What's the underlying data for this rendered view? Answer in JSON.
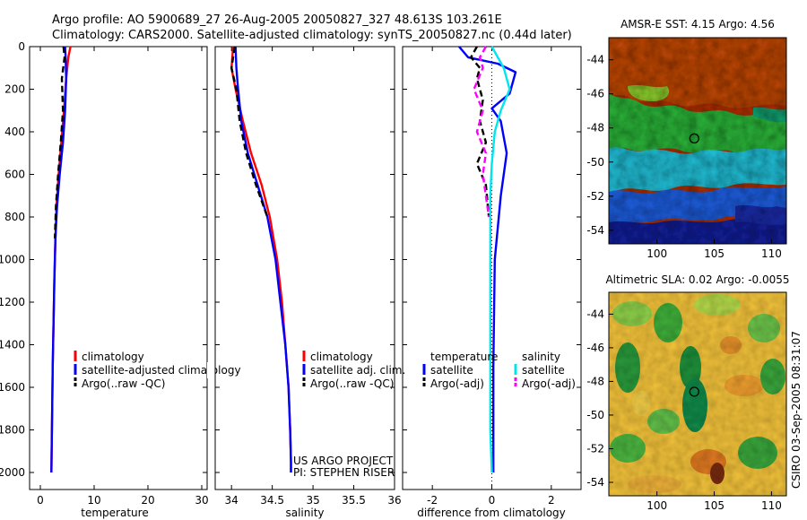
{
  "header": {
    "line1": "Argo profile: AO 5900689_27 26-Aug-2005 20050827_327 48.613S 103.261E",
    "line2": "Climatology: CARS2000. Satellite-adjusted climatology: synTS_20050827.nc (0.44d later)"
  },
  "side_stamp": "CSIRO 03-Sep-2005 08:31:07",
  "colors": {
    "climatology": "#ff0000",
    "satellite": "#0000ff",
    "argo": "#000000",
    "sat_salinity": "#00e5ee",
    "argo_salinity": "#ff00ff"
  },
  "chart_data": [
    {
      "id": "temperature",
      "type": "line",
      "xlabel": "temperature",
      "xlim": [
        -2,
        31
      ],
      "ylim": [
        2080,
        0
      ],
      "xticks": [
        0,
        10,
        20,
        30
      ],
      "yticks": [
        0,
        200,
        400,
        600,
        800,
        1000,
        1200,
        1400,
        1600,
        1800,
        2000
      ],
      "legend": [
        "climatology",
        "satellite-adjusted climatology",
        "Argo(..raw -QC)"
      ],
      "series": [
        {
          "name": "climatology",
          "color": "#ff0000",
          "dash": "",
          "x": [
            5.6,
            5.2,
            4.8,
            4.4,
            3.9,
            3.4,
            3.0,
            2.8,
            2.6,
            2.45,
            2.3,
            2.2,
            2.1,
            2.05
          ],
          "y": [
            0,
            50,
            150,
            300,
            450,
            600,
            750,
            900,
            1100,
            1300,
            1500,
            1700,
            1900,
            2000
          ]
        },
        {
          "name": "satellite-adjusted climatology",
          "color": "#0000ff",
          "dash": "",
          "x": [
            4.6,
            4.7,
            4.8,
            4.6,
            4.2,
            3.6,
            3.1,
            2.8,
            2.6,
            2.45,
            2.3,
            2.2,
            2.1,
            2.05
          ],
          "y": [
            0,
            50,
            150,
            300,
            450,
            600,
            750,
            900,
            1100,
            1300,
            1500,
            1700,
            1900,
            2000
          ]
        },
        {
          "name": "Argo(..raw -QC)",
          "color": "#000000",
          "dash": "7,4",
          "x": [
            4.3,
            4.5,
            4.0,
            4.2,
            3.8,
            3.3,
            2.9,
            2.7
          ],
          "y": [
            0,
            50,
            150,
            300,
            450,
            600,
            750,
            900
          ]
        }
      ]
    },
    {
      "id": "salinity",
      "type": "line",
      "xlabel": "salinity",
      "xlim": [
        33.8,
        36.0
      ],
      "ylim": [
        2080,
        0
      ],
      "xticks": [
        34,
        34.5,
        35,
        35.5,
        36
      ],
      "yticks": [
        0,
        200,
        400,
        600,
        800,
        1000,
        1200,
        1400,
        1600,
        1800,
        2000
      ],
      "legend": [
        "climatology",
        "satellite adj. clim.",
        "Argo(..raw -QC)"
      ],
      "series": [
        {
          "name": "climatology",
          "color": "#ff0000",
          "dash": "",
          "x": [
            34.02,
            34.0,
            34.05,
            34.14,
            34.24,
            34.37,
            34.47,
            34.56,
            34.62,
            34.66,
            34.7,
            34.72,
            34.73,
            34.73
          ],
          "y": [
            0,
            100,
            200,
            350,
            500,
            650,
            800,
            1000,
            1200,
            1400,
            1600,
            1800,
            1950,
            2000
          ]
        },
        {
          "name": "satellite adj. clim.",
          "color": "#0000ff",
          "dash": "",
          "x": [
            34.05,
            34.06,
            34.08,
            34.12,
            34.2,
            34.32,
            34.44,
            34.54,
            34.6,
            34.66,
            34.7,
            34.72,
            34.73,
            34.73
          ],
          "y": [
            0,
            100,
            200,
            350,
            500,
            650,
            800,
            1000,
            1200,
            1400,
            1600,
            1800,
            1950,
            2000
          ]
        },
        {
          "name": "Argo(..raw -QC)",
          "color": "#000000",
          "dash": "7,4",
          "x": [
            34.04,
            34.0,
            34.06,
            34.1,
            34.18,
            34.3,
            34.44
          ],
          "y": [
            0,
            100,
            200,
            350,
            500,
            650,
            800
          ]
        }
      ],
      "annotations": [
        "US ARGO PROJECT",
        "PI: STEPHEN RISER"
      ]
    },
    {
      "id": "difference",
      "type": "line",
      "xlabel": "difference from climatology",
      "xlim": [
        -3,
        3
      ],
      "ylim": [
        2080,
        0
      ],
      "xticks": [
        -2,
        0,
        2
      ],
      "yticks": [
        0,
        200,
        400,
        600,
        800,
        1000,
        1200,
        1400,
        1600,
        1800,
        2000
      ],
      "legend_temperature": {
        "heading": "temperature",
        "items": [
          "satellite",
          "Argo(-adj)"
        ]
      },
      "legend_salinity": {
        "heading": "salinity",
        "items": [
          "satellite",
          "Argo(-adj)"
        ]
      },
      "series": [
        {
          "name": "temperature satellite",
          "color": "#0000ff",
          "dash": "",
          "x": [
            -1.1,
            -0.8,
            0.2,
            0.8,
            0.6,
            0.0,
            0.3,
            0.5,
            0.3,
            0.1,
            0.05,
            0.05
          ],
          "y": [
            0,
            50,
            80,
            120,
            220,
            290,
            350,
            500,
            700,
            1000,
            1500,
            2000
          ]
        },
        {
          "name": "temperature Argo(-adj)",
          "color": "#000000",
          "dash": "7,4",
          "x": [
            -0.5,
            -0.7,
            -0.4,
            -0.5,
            -0.3,
            -0.4,
            -0.2,
            -0.5,
            -0.2,
            -0.1
          ],
          "y": [
            0,
            50,
            100,
            150,
            250,
            350,
            450,
            550,
            650,
            800
          ]
        },
        {
          "name": "salinity satellite",
          "color": "#00e5ee",
          "dash": "",
          "x": [
            0.0,
            0.4,
            0.6,
            0.3,
            0.1,
            0.0,
            -0.05,
            -0.05,
            -0.05,
            -0.05,
            0.0
          ],
          "y": [
            0,
            100,
            200,
            300,
            400,
            550,
            700,
            1000,
            1400,
            1800,
            2000
          ]
        },
        {
          "name": "salinity Argo(-adj)",
          "color": "#ff00ff",
          "dash": "7,4",
          "x": [
            -0.2,
            -0.4,
            -0.3,
            -0.6,
            -0.3,
            -0.5,
            -0.2,
            -0.3,
            -0.1
          ],
          "y": [
            0,
            50,
            100,
            200,
            300,
            400,
            500,
            600,
            800
          ]
        }
      ]
    },
    {
      "id": "sst_map",
      "type": "heatmap",
      "title": "AMSR-E SST: 4.15 Argo: 4.56",
      "xticks": [
        100,
        105,
        110
      ],
      "yticks": [
        -44,
        -46,
        -48,
        -50,
        -52,
        -54
      ],
      "xlim": [
        95.8,
        111.3
      ],
      "ylim": [
        -54.8,
        -42.7
      ],
      "marker": {
        "lon": 103.261,
        "lat": -48.613
      }
    },
    {
      "id": "sla_map",
      "type": "heatmap",
      "title": "Altimetric SLA: 0.02 Argo: -0.0055",
      "xticks": [
        100,
        105,
        110
      ],
      "yticks": [
        -44,
        -46,
        -48,
        -50,
        -52,
        -54
      ],
      "xlim": [
        95.8,
        111.3
      ],
      "ylim": [
        -54.8,
        -42.7
      ],
      "marker": {
        "lon": 103.261,
        "lat": -48.613
      }
    }
  ]
}
